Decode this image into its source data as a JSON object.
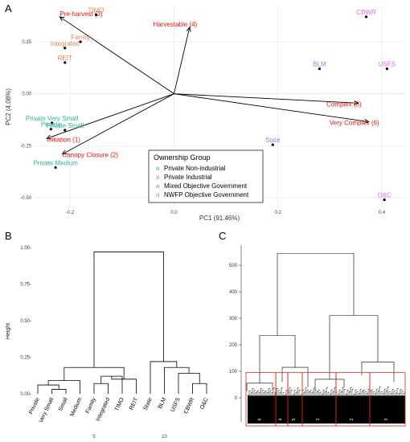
{
  "panel_labels": {
    "a": "A",
    "b": "B",
    "c": "C"
  },
  "colors": {
    "Private Non-industrial": "#2fb597",
    "Private Industrial": "#e8845a",
    "Mixed Objective Government": "#7f8fc8",
    "NWFP Objective Government": "#dd6fd3",
    "vector": "#ee1111",
    "axis": "#555555",
    "grid": "#e4e4e4"
  },
  "chart_data": [
    {
      "type": "scatter",
      "panel": "A",
      "xlabel": "PC1 (91.46%)",
      "ylabel": "PC2 (4.08%)",
      "xlim": [
        -0.27,
        0.445
      ],
      "ylim": [
        -0.55,
        0.42
      ],
      "x_ticks": [
        -0.2,
        0.0,
        0.2,
        0.4
      ],
      "x_tick_labels": [
        "-0.2",
        "0.0",
        "0.2",
        "0.4"
      ],
      "y_ticks": [
        -0.5,
        -0.25,
        0.0,
        0.25
      ],
      "y_tick_labels": [
        "-0.50",
        "-0.25",
        "0.00",
        "0.25"
      ],
      "grid": true,
      "legend": {
        "title": "Ownership Group",
        "placement": "bottom-center",
        "symbol": "a",
        "entries": [
          "Private Non-industrial",
          "Private Industrial",
          "Mixed Objective Government",
          "NWFP Objective Government"
        ]
      },
      "points": [
        {
          "label": "TIMO",
          "x": -0.15,
          "y": 0.38,
          "group": "Private Industrial"
        },
        {
          "label": "Family",
          "x": -0.18,
          "y": 0.25,
          "group": "Private Industrial"
        },
        {
          "label": "Integrated",
          "x": -0.21,
          "y": 0.22,
          "group": "Private Industrial"
        },
        {
          "label": "REIT",
          "x": -0.21,
          "y": 0.15,
          "group": "Private Industrial"
        },
        {
          "label": "Private Very Small",
          "x": -0.235,
          "y": -0.14,
          "group": "Private Non-industrial"
        },
        {
          "label": "Private Small",
          "x": -0.21,
          "y": -0.175,
          "group": "Private Non-industrial"
        },
        {
          "label": "Private",
          "x": -0.237,
          "y": -0.17,
          "group": "Private Non-industrial"
        },
        {
          "label": "Private Medium",
          "x": -0.228,
          "y": -0.355,
          "group": "Private Non-industrial"
        },
        {
          "label": "State",
          "x": 0.19,
          "y": -0.245,
          "group": "Mixed Objective Government"
        },
        {
          "label": "BLM",
          "x": 0.28,
          "y": 0.12,
          "group": "Mixed Objective Government"
        },
        {
          "label": "CBWR",
          "x": 0.37,
          "y": 0.37,
          "group": "NWFP Objective Government"
        },
        {
          "label": "USFS",
          "x": 0.41,
          "y": 0.12,
          "group": "NWFP Objective Government"
        },
        {
          "label": "O&C",
          "x": 0.405,
          "y": -0.51,
          "group": "NWFP Objective Government"
        }
      ],
      "vectors": [
        {
          "label": "Pre-harvest (3)",
          "x": -0.22,
          "y": 0.37
        },
        {
          "label": "Harvestable (4)",
          "x": 0.03,
          "y": 0.32
        },
        {
          "label": "Complex (5)",
          "x": 0.355,
          "y": -0.045
        },
        {
          "label": "Very Complex (6)",
          "x": 0.375,
          "y": -0.135
        },
        {
          "label": "Initiation (1)",
          "x": -0.245,
          "y": -0.215
        },
        {
          "label": "Canopy Closure (2)",
          "x": -0.215,
          "y": -0.29
        }
      ]
    },
    {
      "type": "dendrogram",
      "panel": "B",
      "ylabel": "Height",
      "ylim": [
        0,
        1.0
      ],
      "y_ticks": [
        0,
        0.25,
        0.5,
        0.75,
        1.0
      ],
      "y_tick_labels": [
        "0.00-",
        "0.25-",
        "0.50-",
        "0.75-",
        "1.00-"
      ],
      "x_ticks": [
        5,
        10
      ],
      "x_tick_labels": [
        "5",
        "10"
      ],
      "leaves": [
        "Private",
        "Very Small",
        "Small",
        "Medium",
        "Family",
        "Integrated",
        "TIMO",
        "REIT",
        "State",
        "BLM",
        "USFS",
        "CBWR",
        "O&C"
      ],
      "merges": [
        {
          "a": 1,
          "b": 2,
          "h": 0.03
        },
        {
          "a": "m0",
          "b": 0,
          "h": 0.06
        },
        {
          "a": "m1",
          "b": 3,
          "h": 0.09
        },
        {
          "a": 4,
          "b": 5,
          "h": 0.07
        },
        {
          "a": "m3",
          "b": 6,
          "h": 0.12
        },
        {
          "a": "m4",
          "b": 7,
          "h": 0.1
        },
        {
          "a": "m2",
          "b": "m5",
          "h": 0.18
        },
        {
          "a": 11,
          "b": 12,
          "h": 0.07
        },
        {
          "a": 10,
          "b": "m7",
          "h": 0.14
        },
        {
          "a": 9,
          "b": "m8",
          "h": 0.18
        },
        {
          "a": 8,
          "b": "m9",
          "h": 0.22
        },
        {
          "a": "m6",
          "b": "m10",
          "h": 0.97
        }
      ]
    },
    {
      "type": "dendrogram",
      "panel": "C",
      "ylim": [
        0,
        570
      ],
      "y_ticks": [
        0,
        100,
        200,
        300,
        400,
        500
      ],
      "y_tick_labels": [
        "0",
        "100",
        "200",
        "300",
        "400",
        "500"
      ],
      "cut_height": 95,
      "cluster_labels": [
        "6",
        "4",
        "5",
        "1",
        "2",
        "3"
      ],
      "structure": {
        "root_height": 545,
        "left_height": 235,
        "right_height": 310,
        "left_left_height": 55,
        "left_right_height": 115,
        "right_left_height": 70,
        "right_right_height": 135
      }
    }
  ]
}
